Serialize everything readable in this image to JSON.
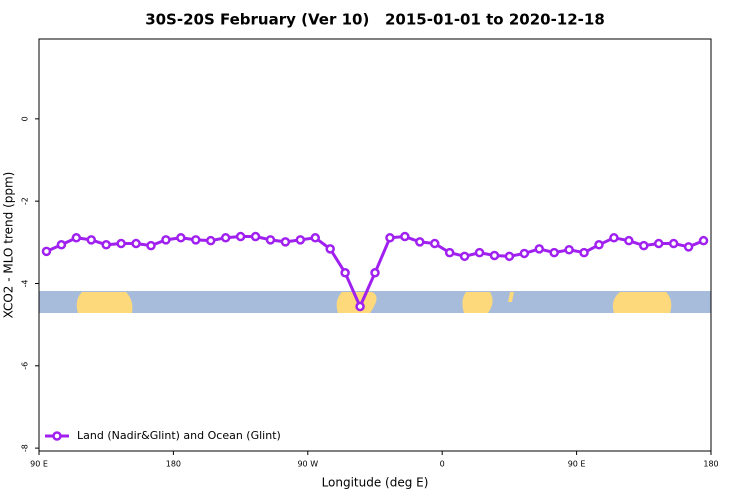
{
  "chart_data": {
    "type": "line",
    "title": "30S-20S February (Ver 10)   2015-01-01 to 2020-12-18",
    "x_label": "Longitude (deg E)",
    "y_label": "XCO2 - MLO trend (ppm)",
    "xlim": [
      90,
      540
    ],
    "xticks": [
      {
        "value": 90,
        "label": "90 E"
      },
      180,
      {
        "value": 270,
        "label": "90 W"
      },
      {
        "value": 360,
        "label": "0"
      },
      {
        "value": 450,
        "label": "90 E"
      },
      {
        "value": 540,
        "label": "180"
      }
    ],
    "ylim": [
      -8.07,
      1.94
    ],
    "yticks": [
      0,
      -2,
      -4,
      -6,
      -8
    ],
    "x": [
      95,
      105,
      115,
      125,
      135,
      145,
      155,
      165,
      175,
      185,
      195,
      205,
      215,
      225,
      235,
      245,
      255,
      265,
      275,
      285,
      295,
      305,
      315,
      325,
      335,
      345,
      355,
      365,
      375,
      385,
      395,
      405,
      415,
      425,
      435,
      445,
      455,
      465,
      475,
      485,
      495,
      505,
      515,
      525,
      535
    ],
    "series": [
      {
        "name": "Land (Nadir&Glint) and Ocean (Glint)",
        "color": "#a020f0",
        "values": [
          -3.22,
          -3.06,
          -2.89,
          -2.94,
          -3.06,
          -3.03,
          -3.03,
          -3.08,
          -2.94,
          -2.89,
          -2.94,
          -2.96,
          -2.89,
          -2.86,
          -2.86,
          -2.94,
          -2.99,
          -2.94,
          -2.89,
          -3.16,
          -3.74,
          -4.56,
          -3.74,
          -2.89,
          -2.86,
          -2.99,
          -3.03,
          -3.25,
          -3.34,
          -3.25,
          -3.32,
          -3.34,
          -3.27,
          -3.16,
          -3.25,
          -3.18,
          -3.25,
          -3.06,
          -2.89,
          -2.96,
          -3.08,
          -3.03,
          -3.03,
          -3.11,
          -2.96
        ]
      }
    ],
    "legend": "bottom-left"
  }
}
